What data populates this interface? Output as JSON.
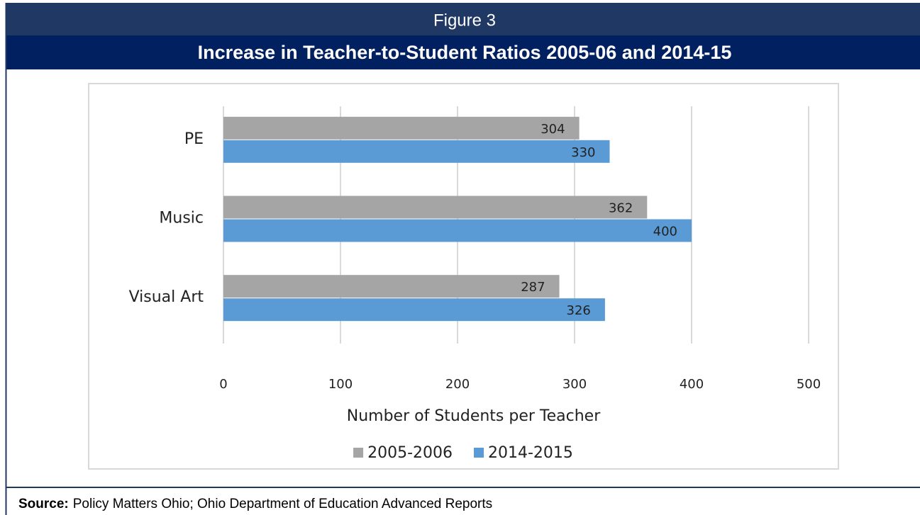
{
  "chart_data": {
    "type": "barh",
    "figure_label": "Figure 3",
    "title": "Increase in Teacher-to-Student Ratios 2005-06 and 2014-15",
    "categories": [
      "PE",
      "Music",
      "Visual Art"
    ],
    "series": [
      {
        "name": "2005-2006",
        "color": "#a5a5a5",
        "values": [
          304,
          362,
          287
        ]
      },
      {
        "name": "2014-2015",
        "color": "#5b9bd5",
        "values": [
          330,
          400,
          326
        ]
      }
    ],
    "xlabel": "Number of Students per Teacher",
    "xlim": [
      0,
      500
    ],
    "xticks": [
      0,
      100,
      200,
      300,
      400,
      500
    ],
    "grid": true,
    "legend": "bottom"
  },
  "source": {
    "label": "Source:",
    "text": "Policy Matters Ohio; Ohio Department of Education Advanced Reports"
  }
}
